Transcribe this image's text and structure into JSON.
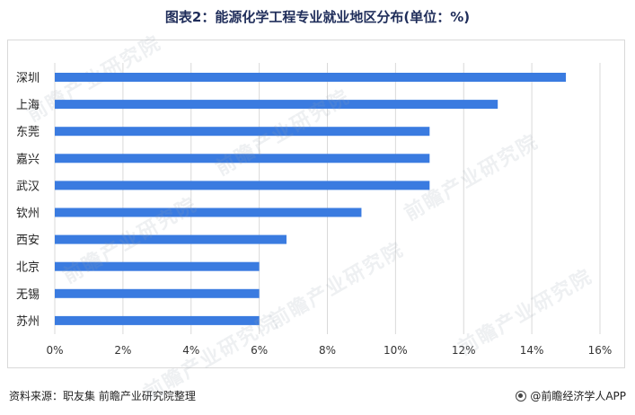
{
  "title": "图表2：能源化学工程专业就业地区分布(单位：%)",
  "source": "资料来源：职友集 前瞻产业研究院整理",
  "brand": "@前瞻经济学人APP",
  "watermark_text": "前瞻产业研究院",
  "colors": {
    "bar": "#3a7be0",
    "grid": "#d9d9d9",
    "title": "#1f2d5a"
  },
  "chart_data": {
    "type": "bar",
    "orientation": "horizontal",
    "title": "图表2：能源化学工程专业就业地区分布(单位：%)",
    "xlabel": "",
    "ylabel": "",
    "categories": [
      "深圳",
      "上海",
      "东莞",
      "嘉兴",
      "武汉",
      "钦州",
      "西安",
      "北京",
      "无锡",
      "苏州"
    ],
    "values": [
      15,
      13,
      11,
      11,
      11,
      9,
      6.8,
      6,
      6,
      6
    ],
    "xlim": [
      0,
      16
    ],
    "xticks": [
      "0%",
      "2%",
      "4%",
      "6%",
      "8%",
      "10%",
      "12%",
      "14%",
      "16%"
    ],
    "grid": true,
    "legend": "none"
  }
}
